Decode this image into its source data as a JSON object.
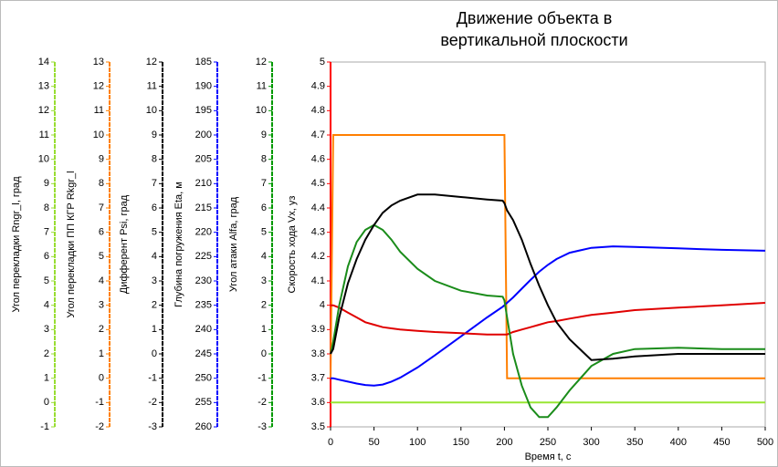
{
  "chart_data": {
    "type": "line",
    "title": "Движение объекта в\nвертикальной плоскости",
    "xlabel": "Время t, с",
    "xlim": [
      0,
      500
    ],
    "xticks": [
      0,
      50,
      100,
      150,
      200,
      250,
      300,
      350,
      400,
      450,
      500
    ],
    "axes": [
      {
        "label": "Угол перекладки Rngr_l, град",
        "color": "#99dd33",
        "ylim": [
          -1,
          14
        ],
        "yticks": [
          -1,
          0,
          1,
          2,
          3,
          4,
          5,
          6,
          7,
          8,
          9,
          10,
          11,
          12,
          13,
          14
        ]
      },
      {
        "label": "Угол перекладки ПП КГР Rkgr_l",
        "color": "#ff8000",
        "ylim": [
          -2,
          13
        ],
        "yticks": [
          -2,
          -1,
          0,
          1,
          2,
          3,
          4,
          5,
          6,
          7,
          8,
          9,
          10,
          11,
          12,
          13
        ]
      },
      {
        "label": "Дифферент Psi, град",
        "color": "#000000",
        "ylim": [
          -3,
          12
        ],
        "yticks": [
          -3,
          -2,
          -1,
          0,
          1,
          2,
          3,
          4,
          5,
          6,
          7,
          8,
          9,
          10,
          11,
          12
        ]
      },
      {
        "label": "Глубина погружения Eta, м",
        "color": "#0000ff",
        "ylim": [
          260,
          185
        ],
        "yticks": [
          185,
          190,
          195,
          200,
          205,
          210,
          215,
          220,
          225,
          230,
          235,
          240,
          245,
          250,
          255,
          260
        ]
      },
      {
        "label": "Угол атаки Alfa, град",
        "color": "#009900",
        "ylim": [
          -3,
          12
        ],
        "yticks": [
          -3,
          -2,
          -1,
          0,
          1,
          2,
          3,
          4,
          5,
          6,
          7,
          8,
          9,
          10,
          11,
          12
        ]
      },
      {
        "label": "Скорость хода Vx, уз",
        "color": "#ff0000",
        "ylim": [
          3.5,
          5
        ],
        "yticks": [
          3.5,
          3.6,
          3.7,
          3.8,
          3.9,
          4,
          4.1,
          4.2,
          4.3,
          4.4,
          4.5,
          4.6,
          4.7,
          4.8,
          4.9,
          5
        ]
      }
    ],
    "x": [
      0,
      3,
      10,
      20,
      30,
      40,
      50,
      60,
      70,
      80,
      100,
      120,
      150,
      180,
      198,
      200,
      203,
      210,
      220,
      230,
      240,
      250,
      260,
      275,
      300,
      325,
      350,
      400,
      450,
      500
    ],
    "series": [
      {
        "axis": 0,
        "color": "#99e633",
        "values": [
          0,
          0,
          0,
          0,
          0,
          0,
          0,
          0,
          0,
          0,
          0,
          0,
          0,
          0,
          0,
          0,
          0,
          0,
          0,
          0,
          0,
          0,
          0,
          0,
          0,
          0,
          0,
          0,
          0,
          0
        ]
      },
      {
        "axis": 1,
        "color": "#ff7f00",
        "values": [
          0,
          10,
          10,
          10,
          10,
          10,
          10,
          10,
          10,
          10,
          10,
          10,
          10,
          10,
          10,
          10,
          0,
          0,
          0,
          0,
          0,
          0,
          0,
          0,
          0,
          0,
          0,
          0,
          0,
          0
        ]
      },
      {
        "axis": 3,
        "color": "#0000ff",
        "values": [
          250,
          250,
          250.3,
          250.7,
          251.1,
          251.4,
          251.5,
          251.3,
          250.7,
          249.9,
          247.8,
          245.3,
          241.4,
          237.5,
          235.3,
          235,
          234.5,
          233.4,
          231.6,
          229.8,
          228.1,
          226.7,
          225.5,
          224.2,
          223.2,
          222.9,
          223,
          223.3,
          223.6,
          223.8
        ]
      },
      {
        "axis": 5,
        "color": "#e00000",
        "values": [
          4.0,
          4.0,
          3.99,
          3.97,
          3.95,
          3.93,
          3.92,
          3.91,
          3.905,
          3.9,
          3.895,
          3.89,
          3.885,
          3.88,
          3.88,
          3.88,
          3.88,
          3.89,
          3.9,
          3.91,
          3.92,
          3.93,
          3.935,
          3.945,
          3.96,
          3.97,
          3.98,
          3.99,
          4.0,
          4.01
        ]
      },
      {
        "axis": 4,
        "color": "#1a8c1a",
        "values": [
          0,
          0.5,
          2.0,
          3.6,
          4.6,
          5.1,
          5.3,
          5.1,
          4.7,
          4.2,
          3.5,
          3.0,
          2.6,
          2.4,
          2.35,
          2.2,
          1.5,
          0,
          -1.3,
          -2.2,
          -2.6,
          -2.6,
          -2.2,
          -1.5,
          -0.5,
          0,
          0.2,
          0.25,
          0.2,
          0.2
        ]
      },
      {
        "axis": 2,
        "color": "#000000",
        "values": [
          0,
          0.2,
          1.5,
          2.9,
          3.9,
          4.7,
          5.3,
          5.8,
          6.1,
          6.3,
          6.55,
          6.55,
          6.45,
          6.35,
          6.3,
          6.2,
          5.9,
          5.5,
          4.7,
          3.7,
          2.8,
          2.0,
          1.3,
          0.6,
          -0.25,
          -0.2,
          -0.1,
          0,
          0,
          0
        ]
      }
    ]
  }
}
